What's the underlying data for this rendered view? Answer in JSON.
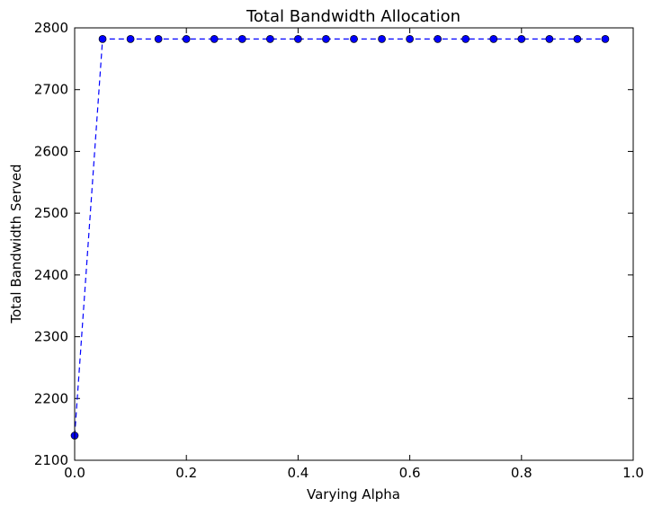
{
  "chart_data": {
    "type": "line",
    "title": "Total Bandwidth Allocation",
    "xlabel": "Varying Alpha",
    "ylabel": "Total Bandwidth Served",
    "xlim": [
      0.0,
      1.0
    ],
    "ylim": [
      2100,
      2800
    ],
    "xticks": [
      0.0,
      0.2,
      0.4,
      0.6,
      0.8,
      1.0
    ],
    "xtick_labels": [
      "0.0",
      "0.2",
      "0.4",
      "0.6",
      "0.8",
      "1.0"
    ],
    "yticks": [
      2100,
      2200,
      2300,
      2400,
      2500,
      2600,
      2700,
      2800
    ],
    "ytick_labels": [
      "2100",
      "2200",
      "2300",
      "2400",
      "2500",
      "2600",
      "2700",
      "2800"
    ],
    "grid": false,
    "legend": "none",
    "series": [
      {
        "color": "#0000ff",
        "line_style": "dashed",
        "marker": "circle",
        "x": [
          0.0,
          0.05,
          0.1,
          0.15,
          0.2,
          0.25,
          0.3,
          0.35,
          0.4,
          0.45,
          0.5,
          0.55,
          0.6,
          0.65,
          0.7,
          0.75,
          0.8,
          0.85,
          0.9,
          0.95
        ],
        "y": [
          2140,
          2782,
          2782,
          2782,
          2782,
          2782,
          2782,
          2782,
          2782,
          2782,
          2782,
          2782,
          2782,
          2782,
          2782,
          2782,
          2782,
          2782,
          2782,
          2782
        ]
      }
    ]
  }
}
